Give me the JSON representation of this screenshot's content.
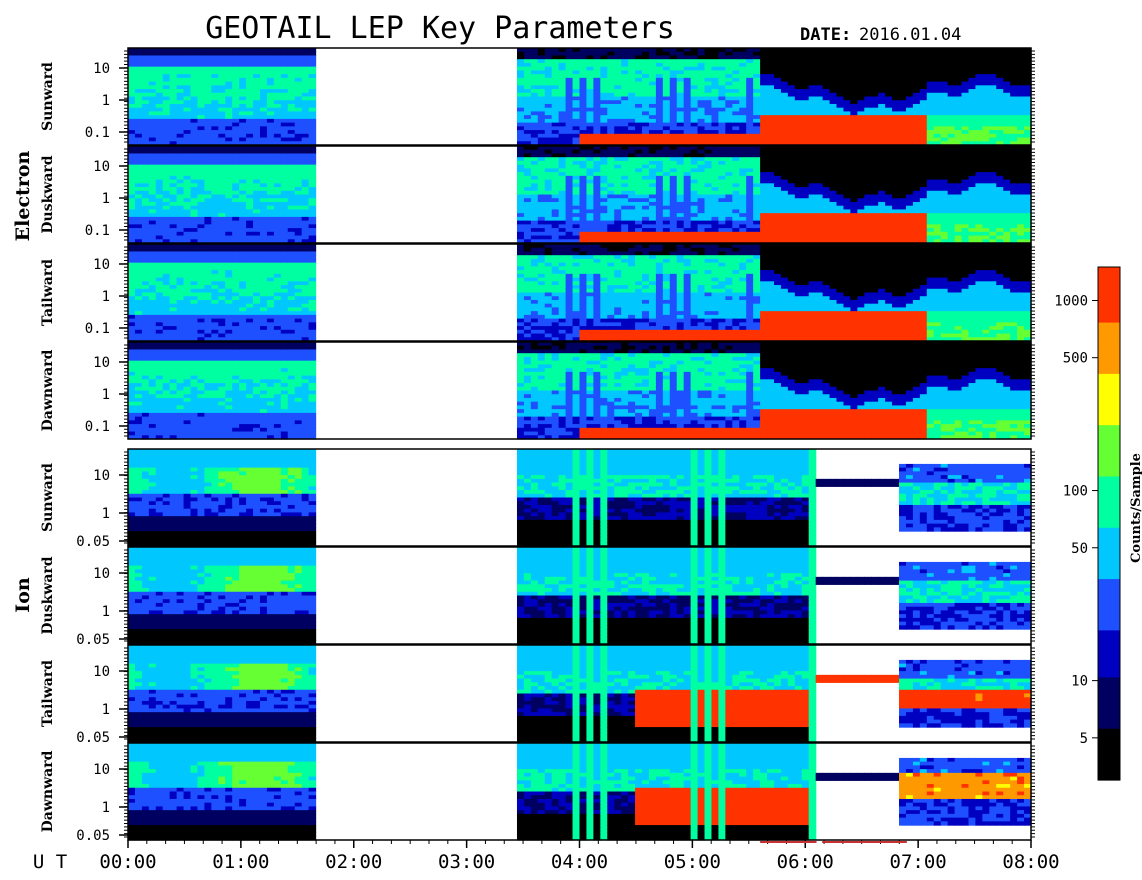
{
  "header": {
    "title": "GEOTAIL LEP Key Parameters",
    "date_label": "DATE:",
    "date_value": "2016.01.04"
  },
  "chart_data": {
    "type": "heatmap",
    "title": "GEOTAIL LEP Key Parameters",
    "x_axis": {
      "label": "U T",
      "range": [
        "00:00",
        "08:00"
      ],
      "tick_labels": [
        "00:00",
        "01:00",
        "02:00",
        "03:00",
        "04:00",
        "05:00",
        "06:00",
        "07:00",
        "08:00"
      ]
    },
    "data_gap": {
      "start": "01:40",
      "end": "03:24"
    },
    "species": [
      {
        "name": "Electron",
        "panels": [
          "Sunward",
          "Duskward",
          "Tailward",
          "Dawnward"
        ],
        "y_tick_labels": [
          "10",
          "1",
          "0.1"
        ],
        "y_log_range": [
          0.05,
          30
        ]
      },
      {
        "name": "Ion",
        "panels": [
          "Sunward",
          "Duskward",
          "Tailward",
          "Dawnward"
        ],
        "y_tick_labels": [
          "10",
          "1",
          "0.05"
        ],
        "y_log_range": [
          0.05,
          30
        ]
      }
    ],
    "colorbar": {
      "label": "Counts/Sample",
      "scale": "log",
      "range": [
        3,
        1500
      ],
      "tick_labels": [
        "1000",
        "500",
        "100",
        "50",
        "10",
        "5"
      ],
      "tick_values": [
        1000,
        500,
        100,
        50,
        10,
        5
      ]
    },
    "colormap": [
      "#000000",
      "#000060",
      "#0000c0",
      "#1e50ff",
      "#00c8ff",
      "#00ffa0",
      "#66ff33",
      "#ffff00",
      "#ff9900",
      "#ff3300",
      "#ff3300"
    ]
  }
}
